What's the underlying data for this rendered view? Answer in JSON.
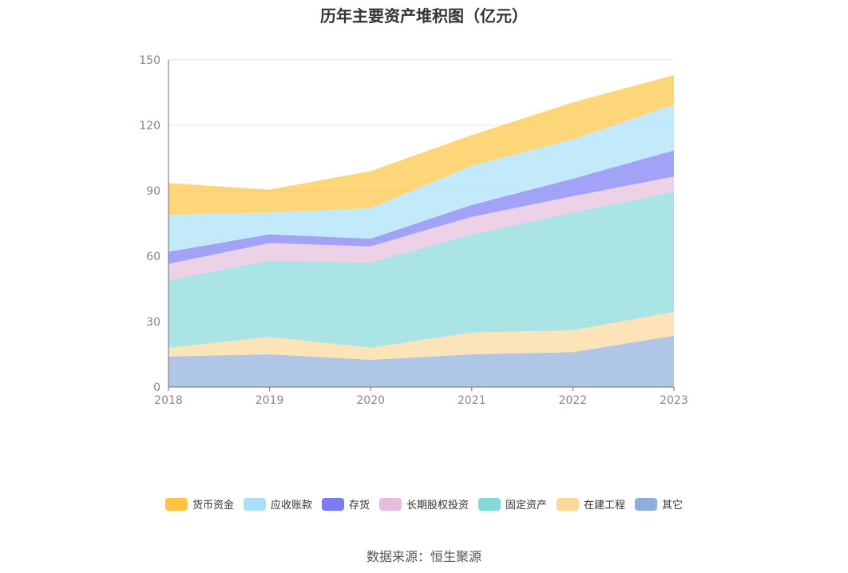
{
  "chart_data": {
    "type": "area",
    "title": "历年主要资产堆积图（亿元）",
    "stacked": true,
    "categories": [
      "2018",
      "2019",
      "2020",
      "2021",
      "2022",
      "2023"
    ],
    "ylim": [
      0,
      150
    ],
    "yticks": [
      0,
      30,
      60,
      90,
      120,
      150
    ],
    "grid": true,
    "legend_position": "bottom",
    "series": [
      {
        "name": "其它",
        "color": "#8eaedb",
        "values": [
          14,
          15,
          12.5,
          15,
          16,
          23.5
        ]
      },
      {
        "name": "在建工程",
        "color": "#fcd99a",
        "values": [
          4,
          8,
          5.5,
          10,
          10,
          11
        ]
      },
      {
        "name": "固定资产",
        "color": "#86d8d8",
        "values": [
          31,
          35,
          39,
          45,
          54,
          55
        ]
      },
      {
        "name": "长期股权投资",
        "color": "#e6bedb",
        "values": [
          7.5,
          8,
          7.5,
          8,
          7.5,
          7
        ]
      },
      {
        "name": "存货",
        "color": "#7a7cf2",
        "values": [
          5.5,
          4,
          3.5,
          5.5,
          8,
          12
        ]
      },
      {
        "name": "应收账款",
        "color": "#a9e1fa",
        "values": [
          17,
          10,
          14,
          18,
          18,
          21
        ]
      },
      {
        "name": "货币资金",
        "color": "#fdc541",
        "values": [
          14.5,
          10.5,
          17,
          14,
          17,
          13.5
        ]
      }
    ]
  },
  "source_text": "数据来源：恒生聚源"
}
